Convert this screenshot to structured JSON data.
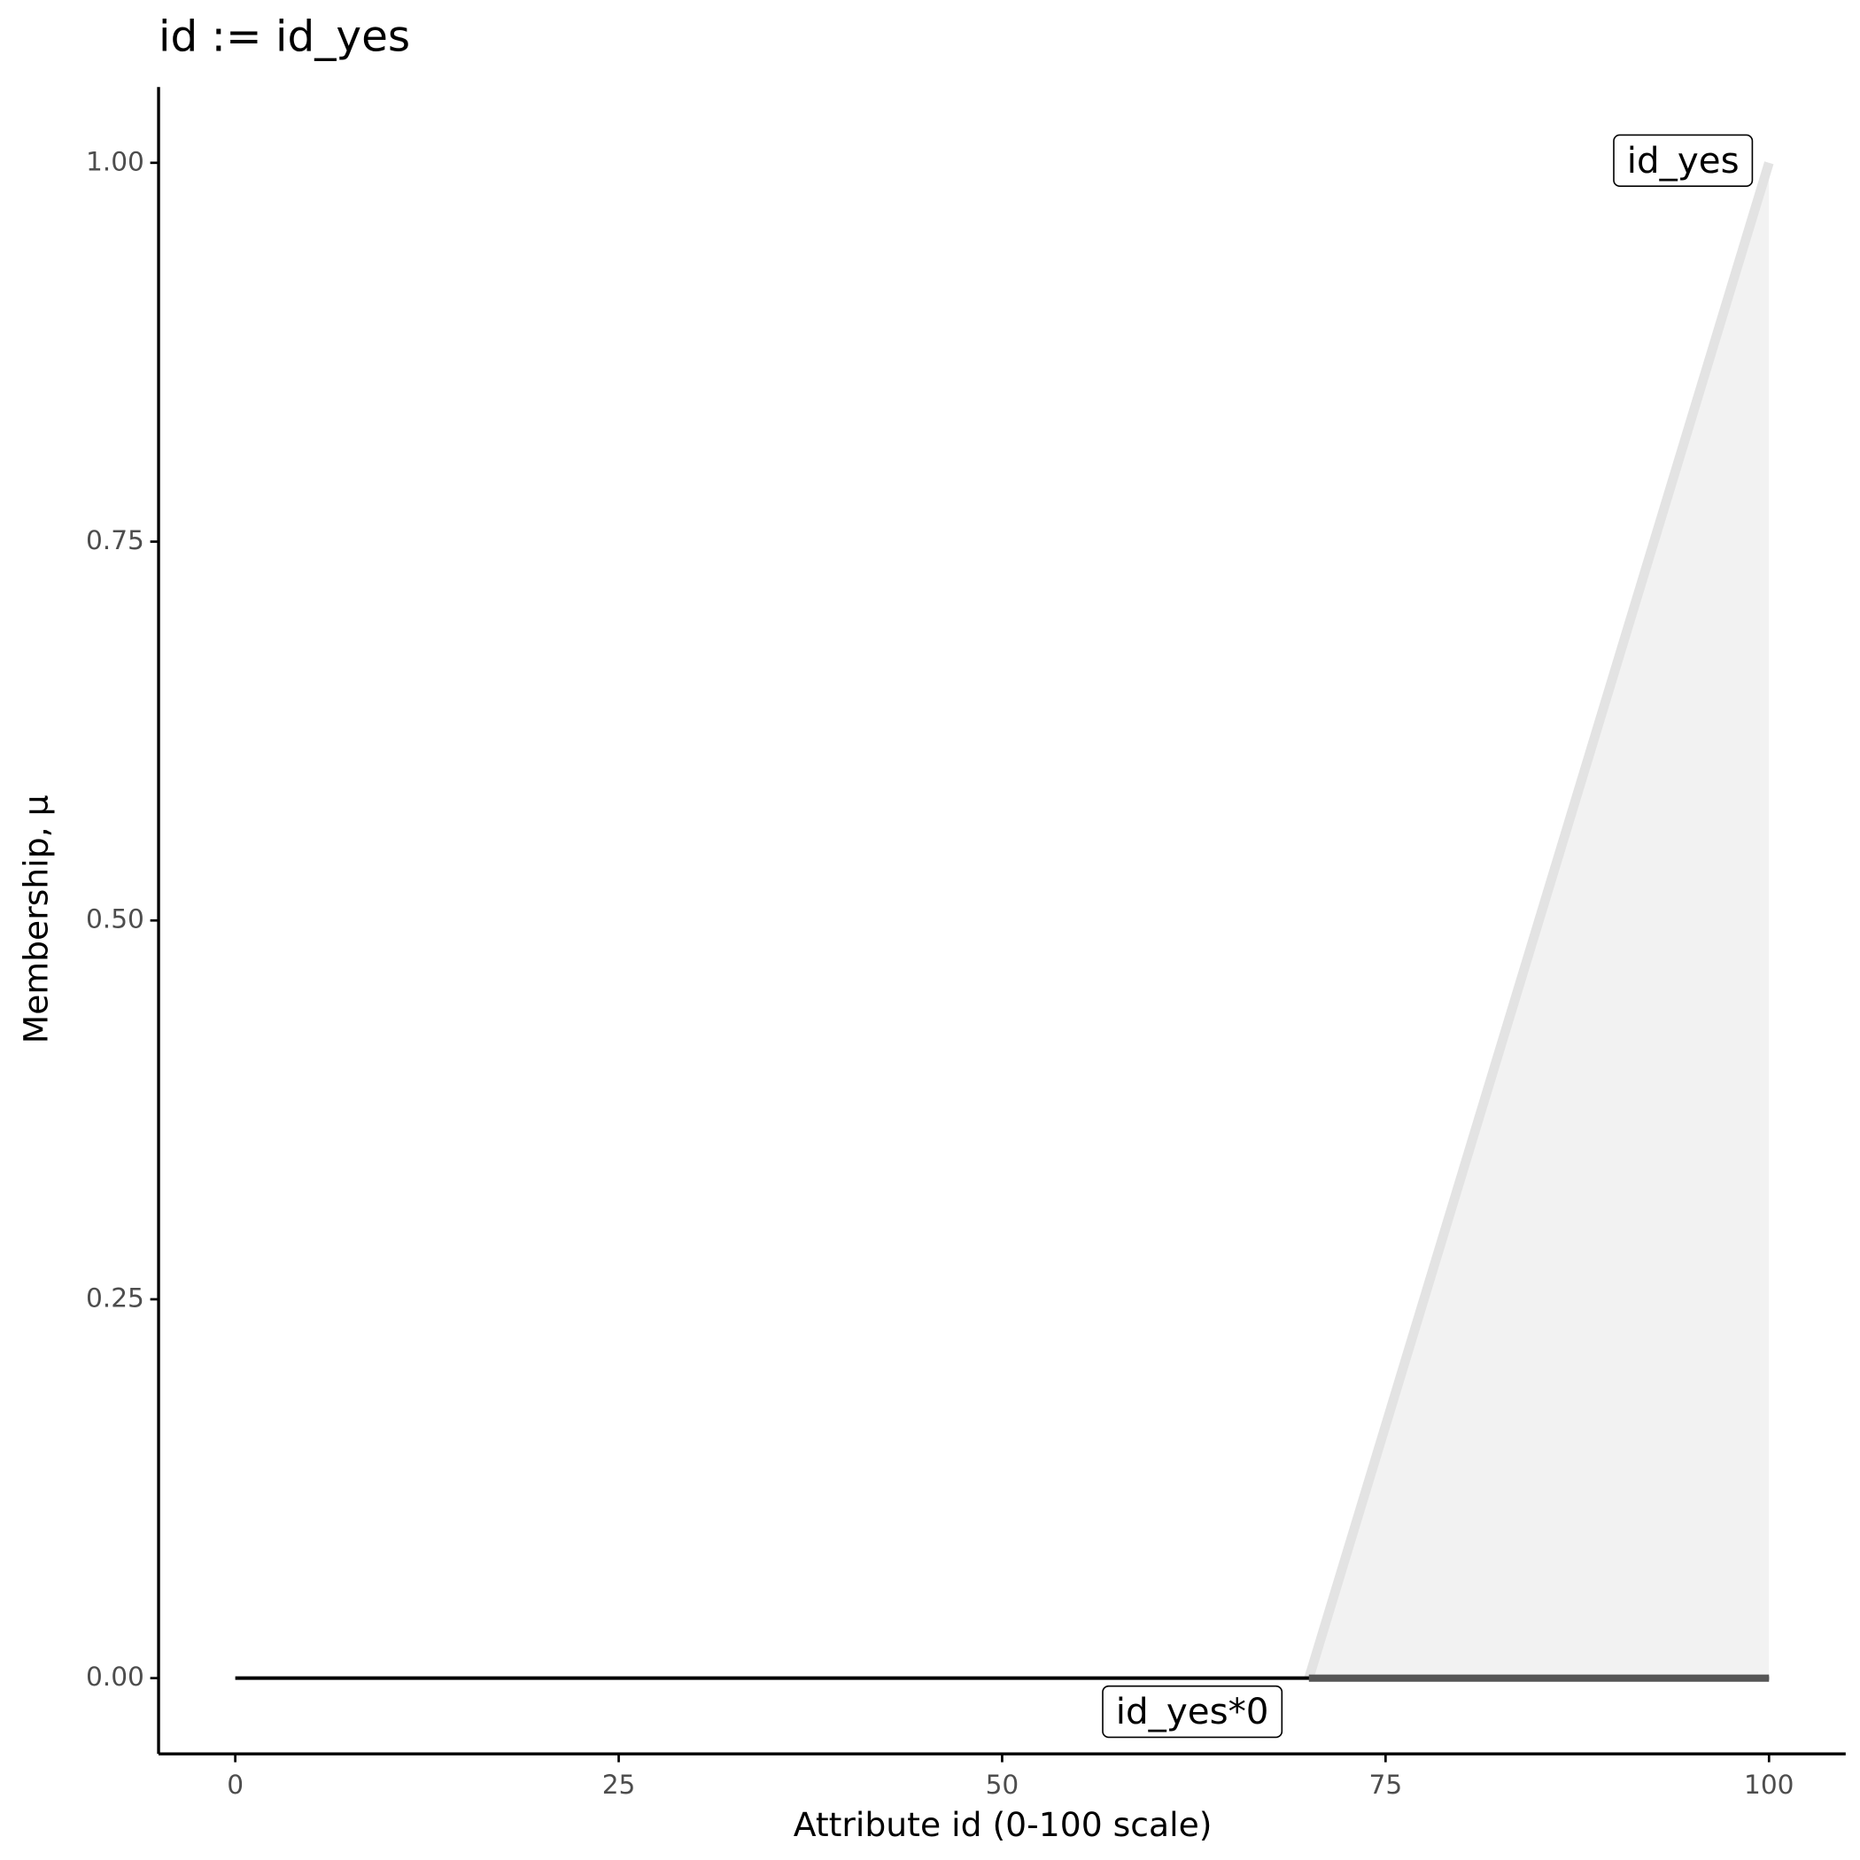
{
  "chart_data": {
    "type": "line",
    "title": "id := id_yes",
    "x_label": "Attribute id (0-100 scale)",
    "y_label": "Membership, μ",
    "xlim": [
      -5,
      105
    ],
    "ylim": [
      -0.05,
      1.05
    ],
    "xticks": [
      0,
      25,
      50,
      75,
      100
    ],
    "yticks": [
      {
        "value": 0,
        "label": "0.00"
      },
      {
        "value": 0.25,
        "label": "0.25"
      },
      {
        "value": 0.5,
        "label": "0.50"
      },
      {
        "value": 0.75,
        "label": "0.75"
      },
      {
        "value": 1,
        "label": "1.00"
      }
    ],
    "grid": false,
    "series": [
      {
        "name": "id_yes",
        "color": "#e3e3e3",
        "fill": "#f2f2f2",
        "x": [
          70,
          100
        ],
        "values": [
          0,
          1
        ]
      },
      {
        "name": "id_yes*0",
        "color": "#000000",
        "x": [
          0,
          100
        ],
        "values": [
          0,
          0
        ]
      },
      {
        "color": "#555555",
        "x": [
          70,
          100
        ],
        "values": [
          0,
          0
        ]
      }
    ]
  }
}
